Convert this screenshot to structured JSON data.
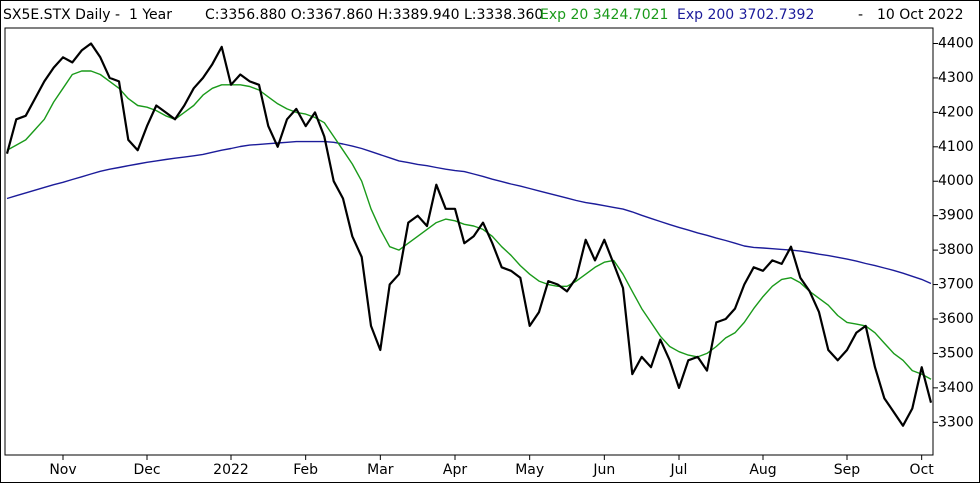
{
  "chart_data": {
    "type": "line",
    "header": {
      "symbol": "SX5E.STX Daily -  1 Year",
      "ohlc": "C:3356.880 O:3367.860 H:3389.940 L:3338.360",
      "exp20": "Exp 20 3424.7021",
      "exp200": "Exp 200 3702.7392",
      "dash": "-",
      "date": "10 Oct 2022"
    },
    "categories": [
      null,
      null,
      null,
      null,
      null,
      null,
      "Nov",
      null,
      null,
      null,
      null,
      null,
      null,
      null,
      null,
      "Dec",
      null,
      null,
      null,
      null,
      null,
      null,
      null,
      null,
      "2022",
      null,
      null,
      null,
      null,
      null,
      null,
      null,
      "Feb",
      null,
      null,
      null,
      null,
      null,
      null,
      null,
      "Mar",
      null,
      null,
      null,
      null,
      null,
      null,
      null,
      "Apr",
      null,
      null,
      null,
      null,
      null,
      null,
      null,
      "May",
      null,
      null,
      null,
      null,
      null,
      null,
      null,
      "Jun",
      null,
      null,
      null,
      null,
      null,
      null,
      null,
      "Jul",
      null,
      null,
      null,
      null,
      null,
      null,
      null,
      null,
      "Aug",
      null,
      null,
      null,
      null,
      null,
      null,
      null,
      null,
      "Sep",
      null,
      null,
      null,
      null,
      null,
      null,
      null,
      "Oct",
      null
    ],
    "series": [
      {
        "name": "Price",
        "color": "#000000",
        "width": 2.2,
        "values": [
          4080,
          4180,
          4190,
          4240,
          4290,
          4330,
          4360,
          4345,
          4380,
          4400,
          4360,
          4300,
          4290,
          4120,
          4090,
          4160,
          4220,
          4200,
          4180,
          4220,
          4270,
          4300,
          4340,
          4390,
          4280,
          4310,
          4290,
          4280,
          4160,
          4100,
          4180,
          4210,
          4160,
          4200,
          4130,
          4000,
          3950,
          3840,
          3780,
          3580,
          3510,
          3700,
          3730,
          3880,
          3900,
          3870,
          3990,
          3920,
          3920,
          3820,
          3840,
          3880,
          3820,
          3750,
          3740,
          3720,
          3580,
          3620,
          3710,
          3700,
          3680,
          3720,
          3830,
          3770,
          3830,
          3760,
          3690,
          3440,
          3490,
          3460,
          3540,
          3480,
          3400,
          3480,
          3490,
          3450,
          3590,
          3600,
          3630,
          3700,
          3750,
          3740,
          3770,
          3760,
          3810,
          3720,
          3680,
          3620,
          3510,
          3480,
          3510,
          3560,
          3580,
          3460,
          3370,
          3330,
          3290,
          3340,
          3460,
          3357
        ]
      },
      {
        "name": "Exp 20",
        "color": "#1a9a1a",
        "width": 1.4,
        "values": [
          4090,
          4105,
          4120,
          4150,
          4180,
          4230,
          4270,
          4310,
          4320,
          4320,
          4310,
          4290,
          4270,
          4240,
          4220,
          4215,
          4205,
          4190,
          4180,
          4200,
          4220,
          4250,
          4270,
          4280,
          4280,
          4280,
          4275,
          4265,
          4245,
          4225,
          4210,
          4200,
          4195,
          4185,
          4170,
          4130,
          4090,
          4050,
          4000,
          3920,
          3860,
          3810,
          3800,
          3820,
          3840,
          3860,
          3880,
          3890,
          3885,
          3875,
          3870,
          3860,
          3840,
          3810,
          3785,
          3755,
          3730,
          3710,
          3700,
          3695,
          3695,
          3710,
          3730,
          3750,
          3765,
          3770,
          3730,
          3680,
          3630,
          3590,
          3550,
          3520,
          3505,
          3495,
          3490,
          3500,
          3520,
          3545,
          3560,
          3590,
          3630,
          3665,
          3695,
          3715,
          3720,
          3705,
          3680,
          3660,
          3640,
          3610,
          3590,
          3585,
          3580,
          3560,
          3530,
          3500,
          3480,
          3450,
          3440,
          3425
        ]
      },
      {
        "name": "Exp 200",
        "color": "#1c1c9a",
        "width": 1.4,
        "values": [
          3950,
          3958,
          3966,
          3974,
          3982,
          3990,
          3997,
          4005,
          4013,
          4021,
          4029,
          4035,
          4040,
          4045,
          4050,
          4055,
          4059,
          4063,
          4067,
          4070,
          4074,
          4078,
          4084,
          4090,
          4095,
          4101,
          4105,
          4107,
          4109,
          4111,
          4113,
          4115,
          4115,
          4115,
          4115,
          4113,
          4108,
          4102,
          4095,
          4086,
          4077,
          4068,
          4059,
          4054,
          4049,
          4045,
          4040,
          4035,
          4031,
          4028,
          4021,
          4014,
          4006,
          3999,
          3992,
          3986,
          3979,
          3972,
          3965,
          3958,
          3951,
          3944,
          3938,
          3934,
          3929,
          3924,
          3919,
          3911,
          3901,
          3892,
          3883,
          3874,
          3866,
          3858,
          3850,
          3843,
          3835,
          3828,
          3820,
          3812,
          3808,
          3806,
          3804,
          3802,
          3800,
          3797,
          3793,
          3788,
          3784,
          3779,
          3774,
          3768,
          3761,
          3755,
          3748,
          3741,
          3733,
          3724,
          3715,
          3703
        ]
      }
    ],
    "ylim": [
      3205,
      4445
    ],
    "yticks": [
      3300,
      3400,
      3500,
      3600,
      3700,
      3800,
      3900,
      4000,
      4100,
      4200,
      4300,
      4400
    ],
    "grid": false
  }
}
